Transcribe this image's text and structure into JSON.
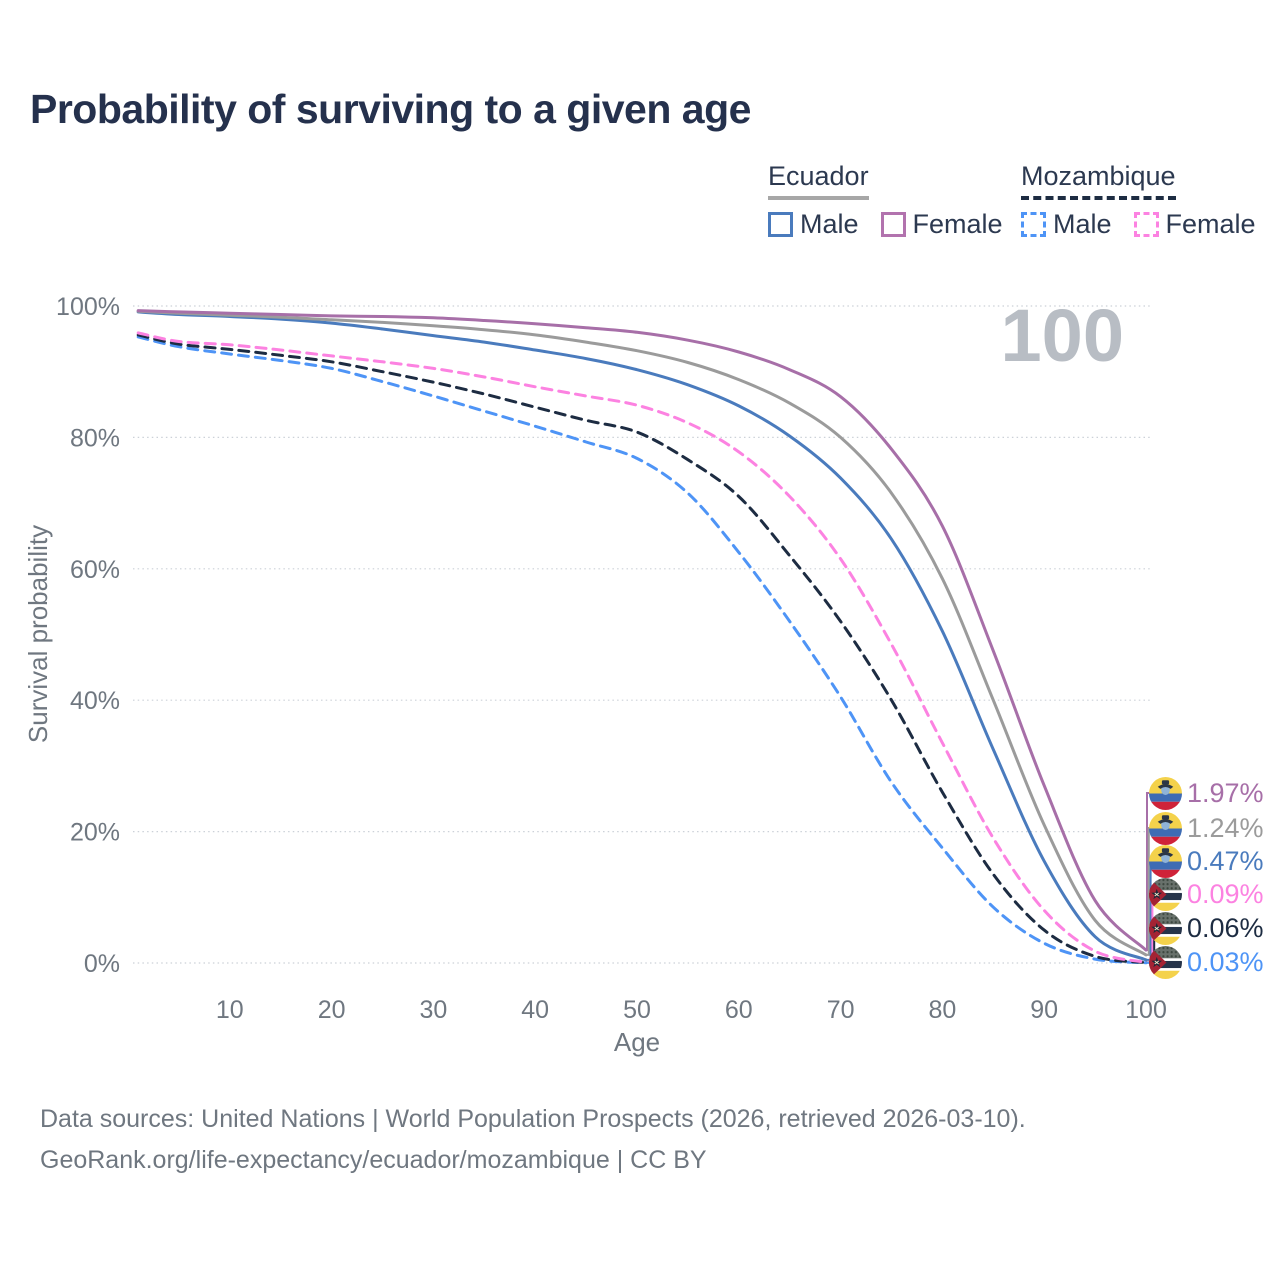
{
  "header": {
    "title": "Probability of surviving to a given age"
  },
  "legend": {
    "groups": [
      {
        "label": "Ecuador",
        "underline_color": "#a7a7a7",
        "underline_style": "solid",
        "items": [
          {
            "label": "Male",
            "color": "#4a7bbd",
            "dashed": false
          },
          {
            "label": "Female",
            "color": "#b273ae",
            "dashed": false
          }
        ]
      },
      {
        "label": "Mozambique",
        "underline_color": "#1d2c42",
        "underline_style": "dashed",
        "items": [
          {
            "label": "Male",
            "color": "#4e94f6",
            "dashed": true
          },
          {
            "label": "Female",
            "color": "#fc82e1",
            "dashed": true
          }
        ]
      }
    ]
  },
  "chart_data": {
    "type": "line",
    "title": "Probability of surviving to a given age",
    "xlabel": "Age",
    "ylabel": "Survival probability",
    "xlim": [
      0,
      100
    ],
    "ylim": [
      0,
      100
    ],
    "grid": true,
    "hover_age_label": "100",
    "x_ticks": [
      {
        "value": 10,
        "label": "10"
      },
      {
        "value": 20,
        "label": "20"
      },
      {
        "value": 30,
        "label": "30"
      },
      {
        "value": 40,
        "label": "40"
      },
      {
        "value": 50,
        "label": "50"
      },
      {
        "value": 60,
        "label": "60"
      },
      {
        "value": 70,
        "label": "70"
      },
      {
        "value": 80,
        "label": "80"
      },
      {
        "value": 90,
        "label": "90"
      },
      {
        "value": 100,
        "label": "100"
      }
    ],
    "y_ticks": [
      {
        "value": 0,
        "label": "0%"
      },
      {
        "value": 20,
        "label": "20%"
      },
      {
        "value": 40,
        "label": "40%"
      },
      {
        "value": 60,
        "label": "60%"
      },
      {
        "value": 80,
        "label": "80%"
      },
      {
        "value": 100,
        "label": "100%"
      }
    ],
    "x": [
      1,
      5,
      10,
      15,
      20,
      25,
      30,
      35,
      40,
      45,
      50,
      55,
      60,
      65,
      70,
      75,
      80,
      85,
      90,
      95,
      100
    ],
    "series": [
      {
        "name": "Ecuador Female",
        "country": "Ecuador",
        "sex": "Female",
        "color": "#a76fa8",
        "dashed": false,
        "end_label": "1.97%",
        "flag": "ecuador",
        "values": [
          99.3,
          99.1,
          98.9,
          98.7,
          98.5,
          98.4,
          98.2,
          97.8,
          97.3,
          96.7,
          96.0,
          94.8,
          93.0,
          90.3,
          86.2,
          78.2,
          66.5,
          47.5,
          27.0,
          9.5,
          1.97
        ]
      },
      {
        "name": "Ecuador Both sexes",
        "country": "Ecuador",
        "sex": "Both",
        "color": "#9b9b9b",
        "dashed": false,
        "end_label": "1.24%",
        "flag": "ecuador",
        "values": [
          99.2,
          98.9,
          98.6,
          98.3,
          97.9,
          97.5,
          97.0,
          96.4,
          95.6,
          94.5,
          93.2,
          91.4,
          88.8,
          85.2,
          80.0,
          71.5,
          58.5,
          40.0,
          21.0,
          6.5,
          1.24
        ]
      },
      {
        "name": "Ecuador Male",
        "country": "Ecuador",
        "sex": "Male",
        "color": "#4a7bbd",
        "dashed": false,
        "end_label": "0.47%",
        "flag": "ecuador",
        "values": [
          99.1,
          98.7,
          98.4,
          98.0,
          97.4,
          96.5,
          95.5,
          94.5,
          93.3,
          92.0,
          90.3,
          88.0,
          84.8,
          80.2,
          73.8,
          64.5,
          50.5,
          32.5,
          15.5,
          4.0,
          0.47
        ]
      },
      {
        "name": "Mozambique Female",
        "country": "Mozambique",
        "sex": "Female",
        "color": "#fc82e1",
        "dashed": true,
        "end_label": "0.09%",
        "flag": "mozambique",
        "values": [
          95.9,
          94.6,
          94.1,
          93.3,
          92.4,
          91.5,
          90.5,
          89.2,
          87.7,
          86.3,
          84.9,
          82.2,
          77.8,
          71.0,
          61.5,
          48.5,
          33.5,
          19.0,
          8.0,
          1.8,
          0.09
        ]
      },
      {
        "name": "Mozambique Both sexes",
        "country": "Mozambique",
        "sex": "Both",
        "color": "#1d2c42",
        "dashed": true,
        "end_label": "0.06%",
        "flag": "mozambique",
        "values": [
          95.6,
          94.2,
          93.4,
          92.5,
          91.5,
          90.0,
          88.4,
          86.6,
          84.6,
          82.6,
          80.8,
          76.6,
          71.0,
          62.0,
          52.0,
          40.0,
          26.0,
          13.5,
          5.0,
          1.0,
          0.06
        ]
      },
      {
        "name": "Mozambique Male",
        "country": "Mozambique",
        "sex": "Male",
        "color": "#4e94f6",
        "dashed": true,
        "end_label": "0.03%",
        "flag": "mozambique",
        "values": [
          95.3,
          93.8,
          92.7,
          91.7,
          90.5,
          88.5,
          86.3,
          84.0,
          81.7,
          79.3,
          76.8,
          71.5,
          62.5,
          52.0,
          40.5,
          27.5,
          17.5,
          8.5,
          3.0,
          0.6,
          0.03
        ]
      }
    ]
  },
  "footer": {
    "line1": "Data sources: United Nations | World Population Prospects (2026, retrieved 2026-03-10).",
    "line2": "GeoRank.org/life-expectancy/ecuador/mozambique | CC BY"
  }
}
